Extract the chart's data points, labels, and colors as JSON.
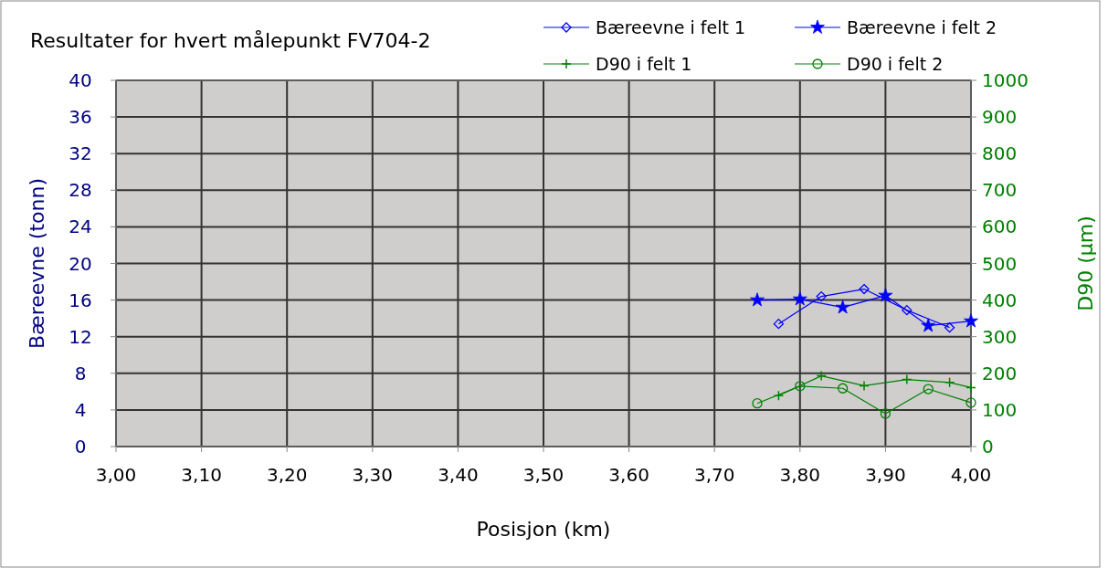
{
  "chart_data": {
    "type": "line",
    "title": "Resultater for hvert målepunkt FV704-2",
    "xlabel": "Posisjon (km)",
    "ylabel": "Bæreevne (tonn)",
    "y2label": "D90 (µm)",
    "xlim": [
      3.0,
      4.0
    ],
    "xticks": [
      {
        "value": 3.0,
        "label": "3,00"
      },
      {
        "value": 3.1,
        "label": "3,10"
      },
      {
        "value": 3.2,
        "label": "3,20"
      },
      {
        "value": 3.3,
        "label": "3,30"
      },
      {
        "value": 3.4,
        "label": "3,40"
      },
      {
        "value": 3.5,
        "label": "3,50"
      },
      {
        "value": 3.6,
        "label": "3,60"
      },
      {
        "value": 3.7,
        "label": "3,70"
      },
      {
        "value": 3.8,
        "label": "3,80"
      },
      {
        "value": 3.9,
        "label": "3,90"
      },
      {
        "value": 4.0,
        "label": "4,00"
      }
    ],
    "ylim": [
      0,
      40
    ],
    "yticks": [
      0,
      4,
      8,
      12,
      16,
      20,
      24,
      28,
      32,
      36,
      40
    ],
    "y2lim": [
      0,
      1000
    ],
    "y2ticks": [
      0,
      100,
      200,
      300,
      400,
      500,
      600,
      700,
      800,
      900,
      1000
    ],
    "grid": true,
    "legend": "top right",
    "line_style": "solid",
    "series": [
      {
        "name": "Bæreevne i felt 1",
        "color": "#0000ff",
        "marker": "diamond",
        "x": [
          3.775,
          3.825,
          3.875,
          3.925,
          3.975
        ],
        "values": [
          13.4,
          16.4,
          17.2,
          14.9,
          13.0
        ]
      },
      {
        "name": "Bæreevne i felt 2",
        "color": "#0000ff",
        "marker": "star",
        "x": [
          3.75,
          3.8,
          3.85,
          3.9,
          3.95,
          4.0
        ],
        "values": [
          16.0,
          16.1,
          15.2,
          16.5,
          13.2,
          13.7
        ]
      },
      {
        "name": "D90 i felt 1",
        "color": "#008000",
        "marker": "cross",
        "axis": "y2",
        "x": [
          3.775,
          3.825,
          3.875,
          3.925,
          3.975,
          4.0
        ],
        "values": [
          139,
          193,
          166,
          183,
          175,
          161
        ]
      },
      {
        "name": "D90 i felt 2",
        "color": "#008000",
        "marker": "circle",
        "axis": "y2",
        "x": [
          3.75,
          3.8,
          3.85,
          3.9,
          3.95,
          4.0
        ],
        "values": [
          118,
          165,
          159,
          90,
          157,
          120
        ]
      }
    ]
  }
}
